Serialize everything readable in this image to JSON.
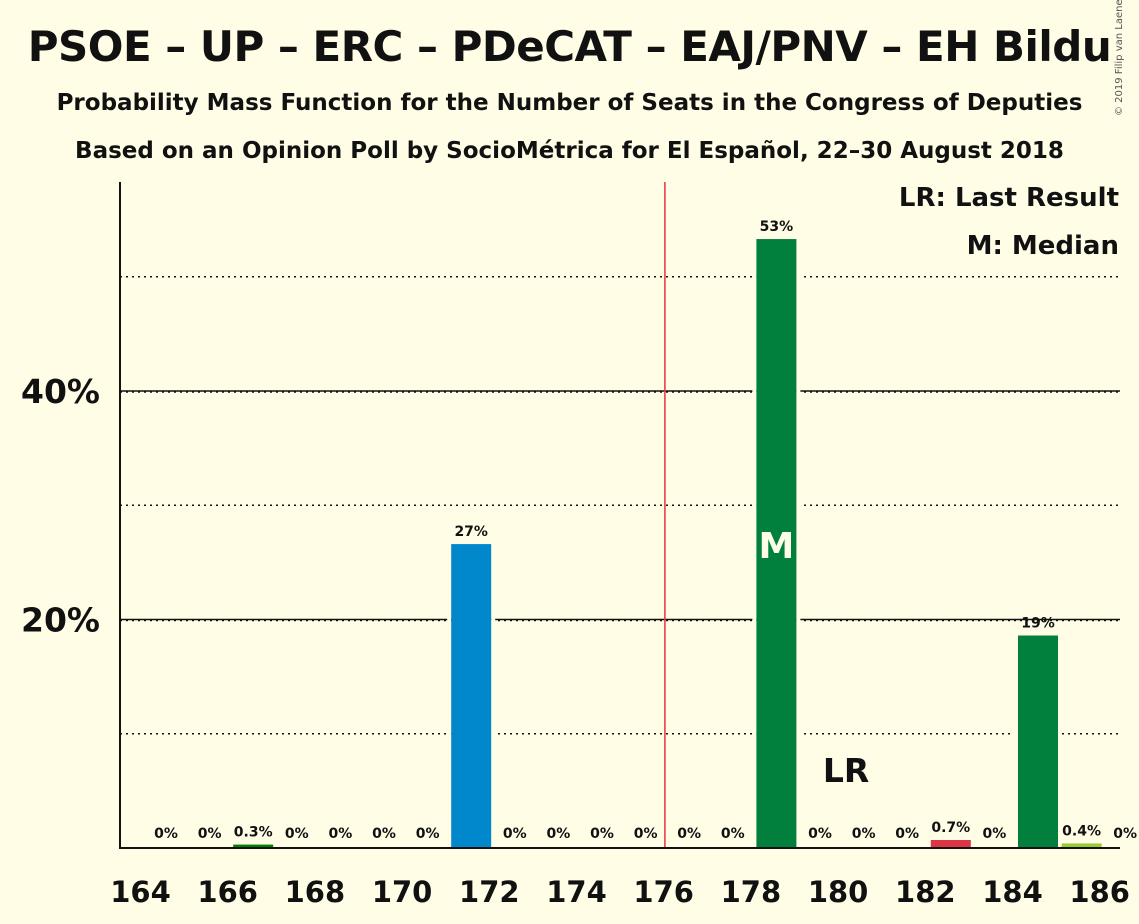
{
  "title": "PSOE – UP – ERC – PDeCAT – EAJ/PNV – EH Bildu",
  "subtitle1": "Probability Mass Function for the Number of Seats in the Congress of Deputies",
  "subtitle2": "Based on an Opinion Poll by SocioMétrica for El Español, 22–30 August 2018",
  "copyright": "© 2019 Filip van Laenen",
  "legend": {
    "last_result": "LR: Last Result",
    "median": "M: Median"
  },
  "chart_data": {
    "type": "bar",
    "x": [
      164,
      165,
      166,
      167,
      168,
      169,
      170,
      171,
      172,
      173,
      174,
      175,
      176,
      177,
      178,
      179,
      180,
      181,
      182,
      183,
      184,
      185,
      186
    ],
    "values": [
      0,
      0,
      0.3,
      0,
      0,
      0,
      0,
      26.6,
      0,
      0,
      0,
      0,
      0,
      0,
      53.3,
      0,
      0,
      0,
      0.7,
      0,
      18.6,
      0.4,
      0
    ],
    "value_labels": [
      "0%",
      "0%",
      "0.3%",
      "0%",
      "0%",
      "0%",
      "0%",
      "27%",
      "0%",
      "0%",
      "0%",
      "0%",
      "0%",
      "0%",
      "53%",
      "0%",
      "0%",
      "0%",
      "0.7%",
      "0%",
      "19%",
      "0.4%",
      "0%"
    ],
    "bar_colors": [
      "#008000",
      "#008000",
      "#008000",
      "#008000",
      "#008000",
      "#008000",
      "#008000",
      "#0087cc",
      "#008000",
      "#008000",
      "#008000",
      "#008000",
      "#008000",
      "#008000",
      "#00803c",
      "#008000",
      "#008000",
      "#008000",
      "#dc3545",
      "#008000",
      "#00803c",
      "#99cc33",
      "#008000"
    ],
    "xticks": [
      164,
      166,
      168,
      170,
      172,
      174,
      176,
      178,
      180,
      182,
      184,
      186
    ],
    "ytick_labels": [
      {
        "value": 20,
        "label": "20%"
      },
      {
        "value": 40,
        "label": "40%"
      }
    ],
    "gridlines_solid": [
      20,
      40
    ],
    "gridlines_dotted": [
      10,
      30,
      50
    ],
    "ylim": [
      0,
      58
    ],
    "majority_line_x": 175.5,
    "majority_color": "#e8323c",
    "median_seat": 178,
    "median_label": "M",
    "last_result_seat": 180,
    "last_result_label": "LR"
  }
}
